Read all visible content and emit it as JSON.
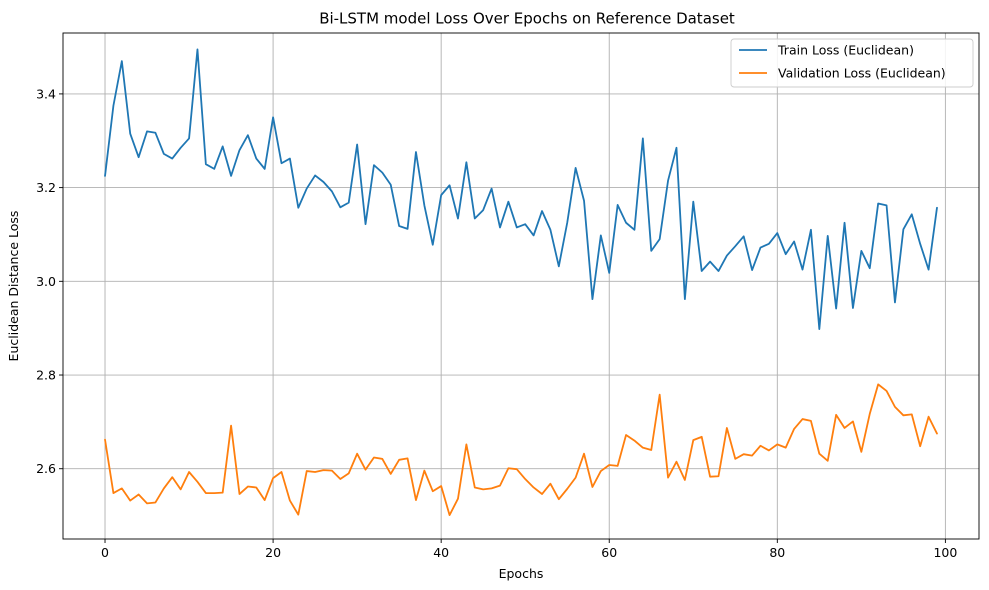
{
  "chart_data": {
    "type": "line",
    "title": "Bi-LSTM model Loss Over Epochs on Reference Dataset",
    "xlabel": "Epochs",
    "ylabel": "Euclidean Distance Loss",
    "xlim": [
      -5,
      104
    ],
    "ylim": [
      2.45,
      3.53
    ],
    "xticks": [
      0,
      20,
      40,
      60,
      80,
      100
    ],
    "xtick_labels": [
      "0",
      "20",
      "40",
      "60",
      "80",
      "100"
    ],
    "yticks": [
      2.6,
      2.8,
      3.0,
      3.2,
      3.4
    ],
    "ytick_labels": [
      "2.6",
      "2.8",
      "3.0",
      "3.2",
      "3.4"
    ],
    "grid": true,
    "legend_position": "top-right",
    "x": [
      0,
      1,
      2,
      3,
      4,
      5,
      6,
      7,
      8,
      9,
      10,
      11,
      12,
      13,
      14,
      15,
      16,
      17,
      18,
      19,
      20,
      21,
      22,
      23,
      24,
      25,
      26,
      27,
      28,
      29,
      30,
      31,
      32,
      33,
      34,
      35,
      36,
      37,
      38,
      39,
      40,
      41,
      42,
      43,
      44,
      45,
      46,
      47,
      48,
      49,
      50,
      51,
      52,
      53,
      54,
      55,
      56,
      57,
      58,
      59,
      60,
      61,
      62,
      63,
      64,
      65,
      66,
      67,
      68,
      69,
      70,
      71,
      72,
      73,
      74,
      75,
      76,
      77,
      78,
      79,
      80,
      81,
      82,
      83,
      84,
      85,
      86,
      87,
      88,
      89,
      90,
      91,
      92,
      93,
      94,
      95,
      96,
      97,
      98,
      99
    ],
    "series": [
      {
        "name": "Train Loss (Euclidean)",
        "color": "#1f77b4",
        "values": [
          3.225,
          3.375,
          3.47,
          3.315,
          3.265,
          3.32,
          3.317,
          3.272,
          3.262,
          3.285,
          3.305,
          3.495,
          3.25,
          3.24,
          3.288,
          3.225,
          3.28,
          3.312,
          3.262,
          3.24,
          3.35,
          3.252,
          3.262,
          3.157,
          3.198,
          3.226,
          3.212,
          3.192,
          3.158,
          3.168,
          3.292,
          3.122,
          3.248,
          3.232,
          3.206,
          3.118,
          3.112,
          3.276,
          3.162,
          3.078,
          3.184,
          3.205,
          3.134,
          3.254,
          3.134,
          3.152,
          3.198,
          3.115,
          3.17,
          3.115,
          3.122,
          3.098,
          3.15,
          3.11,
          3.032,
          3.125,
          3.242,
          3.172,
          2.962,
          3.098,
          3.018,
          3.163,
          3.125,
          3.11,
          3.305,
          3.065,
          3.09,
          3.215,
          3.285,
          2.962,
          3.17,
          3.022,
          3.042,
          3.022,
          3.055,
          3.075,
          3.096,
          3.024,
          3.072,
          3.08,
          3.103,
          3.058,
          3.085,
          3.025,
          3.11,
          2.898,
          3.097,
          2.942,
          3.125,
          2.943,
          3.065,
          3.028,
          3.166,
          3.162,
          2.955,
          3.111,
          3.143,
          3.08,
          3.025,
          3.157
        ]
      },
      {
        "name": "Validation Loss (Euclidean)",
        "color": "#ff7f0e",
        "values": [
          2.662,
          2.548,
          2.558,
          2.532,
          2.545,
          2.526,
          2.528,
          2.558,
          2.582,
          2.556,
          2.593,
          2.572,
          2.548,
          2.548,
          2.549,
          2.692,
          2.546,
          2.562,
          2.56,
          2.533,
          2.58,
          2.593,
          2.532,
          2.502,
          2.595,
          2.593,
          2.597,
          2.596,
          2.578,
          2.59,
          2.632,
          2.598,
          2.624,
          2.621,
          2.589,
          2.619,
          2.622,
          2.533,
          2.596,
          2.552,
          2.563,
          2.501,
          2.536,
          2.652,
          2.56,
          2.556,
          2.558,
          2.564,
          2.601,
          2.599,
          2.578,
          2.56,
          2.546,
          2.568,
          2.535,
          2.557,
          2.581,
          2.632,
          2.561,
          2.595,
          2.608,
          2.606,
          2.672,
          2.66,
          2.645,
          2.64,
          2.758,
          2.581,
          2.615,
          2.576,
          2.661,
          2.668,
          2.583,
          2.584,
          2.687,
          2.621,
          2.631,
          2.628,
          2.649,
          2.639,
          2.652,
          2.645,
          2.685,
          2.706,
          2.702,
          2.632,
          2.617,
          2.715,
          2.687,
          2.701,
          2.636,
          2.717,
          2.78,
          2.766,
          2.732,
          2.714,
          2.716,
          2.648,
          2.711,
          2.675
        ]
      }
    ]
  }
}
